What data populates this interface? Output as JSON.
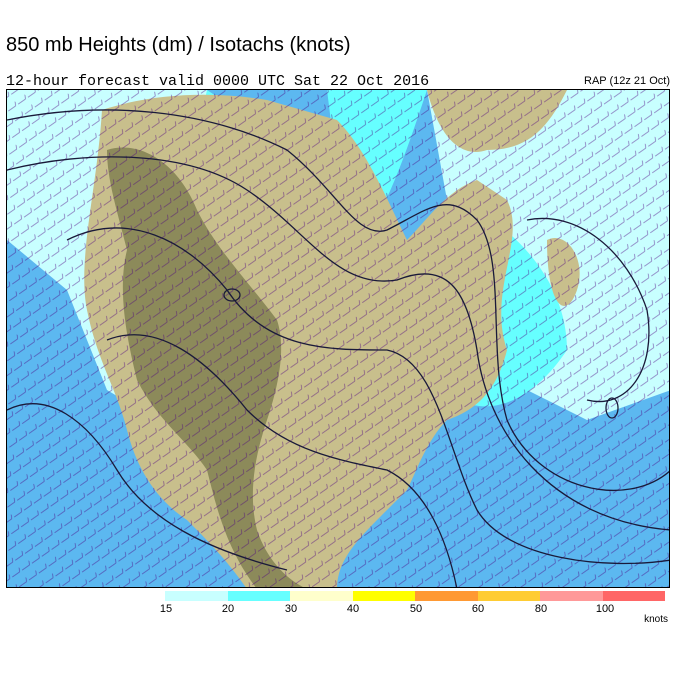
{
  "title": "850 mb Heights (dm) / Isotachs (knots)",
  "subtitle": "12-hour forecast valid 0000 UTC Sat 22 Oct 2016",
  "model_run": "RAP (12z 21 Oct)",
  "legend": {
    "units": "knots",
    "tick_labels": [
      "15",
      "20",
      "30",
      "40",
      "50",
      "60",
      "80",
      "100"
    ],
    "colors": [
      "#c8ffff",
      "#66ffff",
      "#ffffcc",
      "#ffff00",
      "#ff9933",
      "#ffcc33",
      "#ff9999",
      "#ff6666"
    ]
  },
  "map_colors": {
    "ocean": "#5cb8f0",
    "land": "#c8bf8c",
    "terrain": "#8c8a5a",
    "contour": "#1a1a3a",
    "barb": "#4b0082"
  }
}
